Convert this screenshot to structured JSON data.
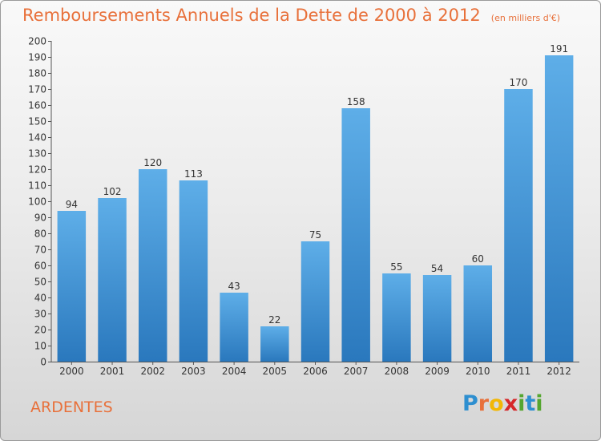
{
  "chart_data": {
    "type": "bar",
    "title": "Remboursements Annuels de la Dette de 2000 à 2012",
    "subtitle": "(en milliers d'€)",
    "categories": [
      "2000",
      "2001",
      "2002",
      "2003",
      "2004",
      "2005",
      "2006",
      "2007",
      "2008",
      "2009",
      "2010",
      "2011",
      "2012"
    ],
    "values": [
      94,
      102,
      120,
      113,
      43,
      22,
      75,
      158,
      55,
      54,
      60,
      170,
      191
    ],
    "ylim": [
      0,
      200
    ],
    "ytick_step": 10,
    "grid": false,
    "bar_color": "#3d8fd3",
    "xlabel": "",
    "ylabel": ""
  },
  "commune": "ARDENTES",
  "logo": {
    "letters": [
      "P",
      "r",
      "o",
      "x",
      "i",
      "t",
      "i"
    ],
    "colors": [
      "#2e8fd0",
      "#e8703a",
      "#f2b705",
      "#d6282a",
      "#55a630",
      "#2e8fd0",
      "#55a630"
    ]
  }
}
